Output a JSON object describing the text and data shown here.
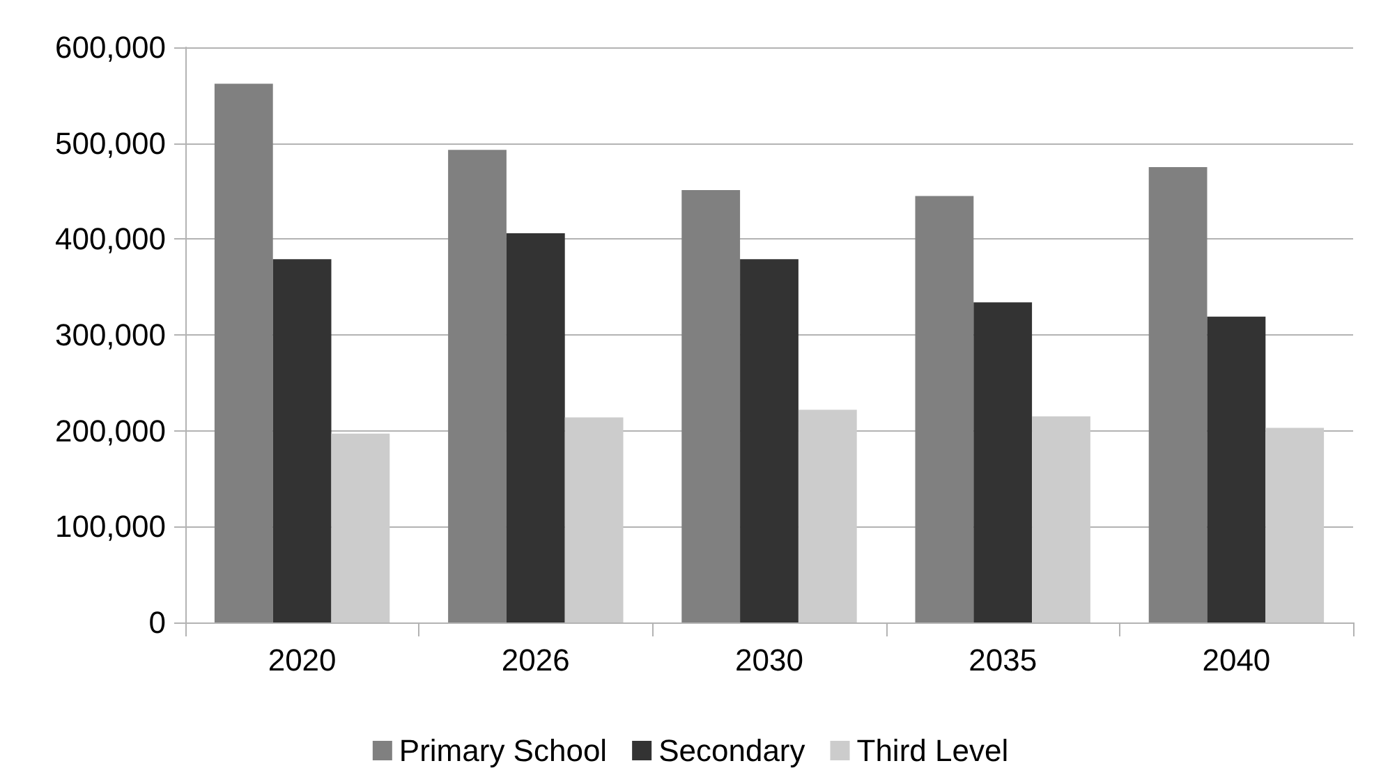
{
  "chart_data": {
    "type": "bar",
    "categories": [
      "2020",
      "2026",
      "2030",
      "2035",
      "2040"
    ],
    "series": [
      {
        "name": "Primary School",
        "color": "#808080",
        "values": [
          562000,
          493000,
          451000,
          445000,
          475000
        ]
      },
      {
        "name": "Secondary",
        "color": "#333333",
        "values": [
          379000,
          406000,
          379000,
          334000,
          319000
        ]
      },
      {
        "name": "Third Level",
        "color": "#cccccc",
        "values": [
          197000,
          214000,
          222000,
          215000,
          203000
        ]
      }
    ],
    "ylim": [
      0,
      600000
    ],
    "yticks": [
      {
        "value": 0,
        "label": "0"
      },
      {
        "value": 100000,
        "label": "100,000"
      },
      {
        "value": 200000,
        "label": "200,000"
      },
      {
        "value": 300000,
        "label": "300,000"
      },
      {
        "value": 400000,
        "label": "400,000"
      },
      {
        "value": 500000,
        "label": "500,000"
      },
      {
        "value": 600000,
        "label": "600,000"
      }
    ],
    "grid": "y",
    "legend": "bottom"
  }
}
